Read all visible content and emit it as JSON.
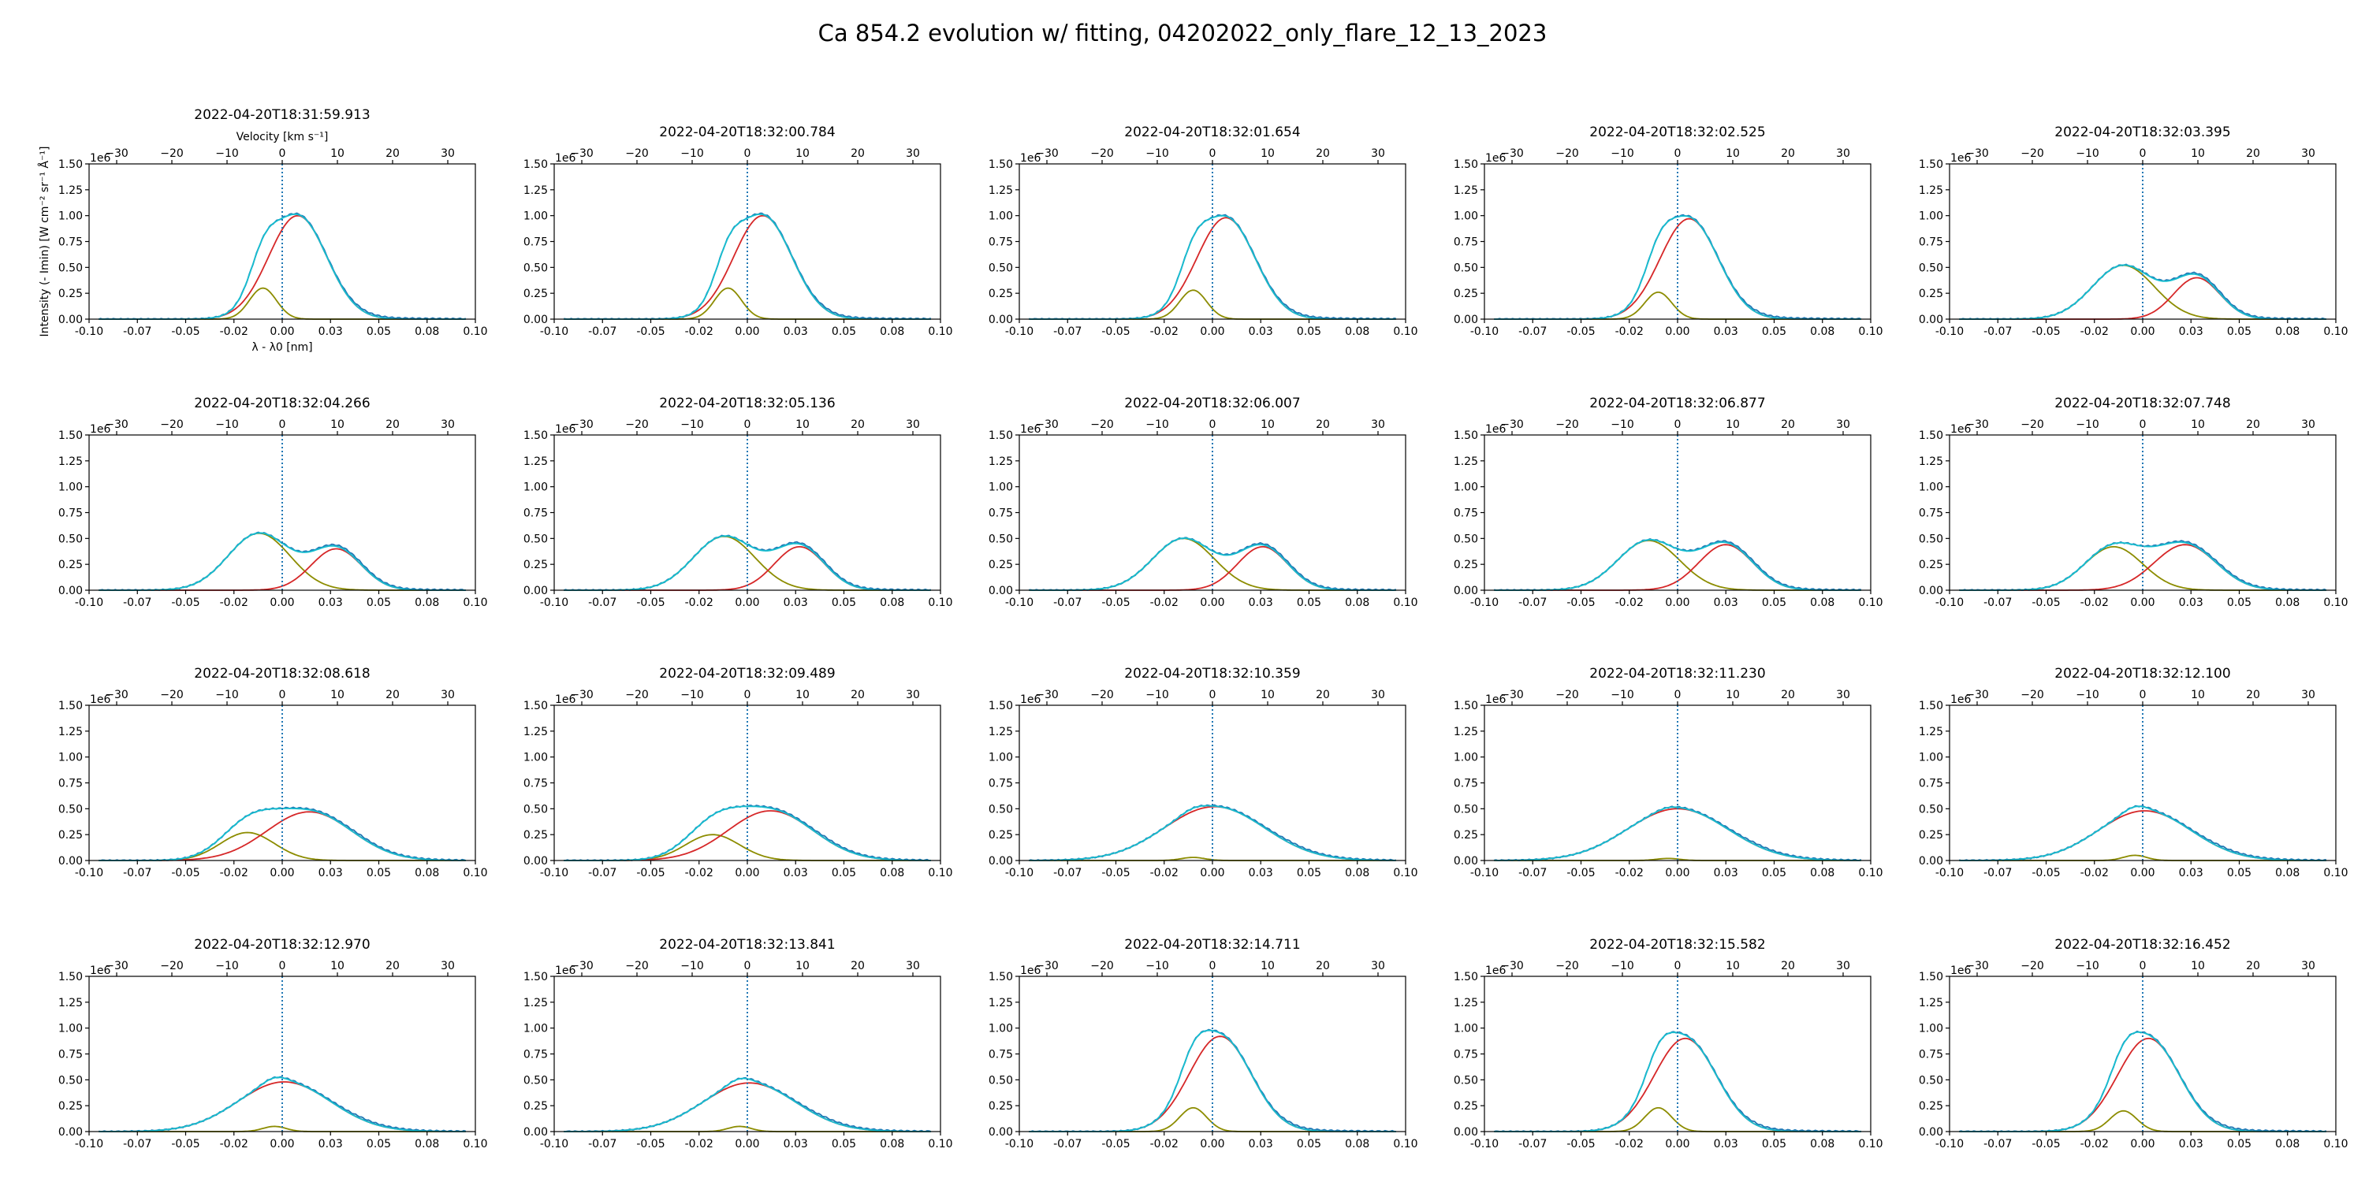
{
  "suptitle": "Ca 854.2 evolution w/ fitting, 04202022_only_flare_12_13_2023",
  "chart_data": {
    "type": "line",
    "title": "Ca 854.2 evolution w/ fitting, 04202022_only_flare_12_13_2023",
    "xlabel": "λ - λ0 [nm]",
    "ylabel": "Intensity (- Imin) [W cm⁻² sr⁻¹ Å⁻¹]",
    "top_xlabel": "Velocity [km s⁻¹]",
    "y_offset_label": "1e6",
    "xlim": [
      -0.1,
      0.1
    ],
    "ylim": [
      0,
      1.5
    ],
    "top_xlim": [
      -35,
      35
    ],
    "x_ticks": [
      -0.1,
      -0.075,
      -0.05,
      -0.025,
      0.0,
      0.025,
      0.05,
      0.075,
      0.1
    ],
    "x_tick_labels": [
      "-0.10",
      "-0.07",
      "-0.05",
      "-0.02",
      "0.00",
      "0.03",
      "0.05",
      "0.08",
      "0.10"
    ],
    "y_ticks": [
      0,
      0.25,
      0.5,
      0.75,
      1.0,
      1.25,
      1.5
    ],
    "y_tick_labels": [
      "0.00",
      "0.25",
      "0.50",
      "0.75",
      "1.00",
      "1.25",
      "1.50"
    ],
    "top_ticks": [
      -30,
      -20,
      -10,
      0,
      10,
      20,
      30
    ],
    "top_tick_labels": [
      "−30",
      "−20",
      "−10",
      "0",
      "10",
      "20",
      "30"
    ],
    "series_colors": {
      "observed": "#1f77b4",
      "fit_total": "#17becf",
      "component_red": "#d62728",
      "component_blue": "#8c8c00",
      "zero_line": "#1f77b4"
    },
    "grid": false,
    "panels": [
      {
        "title": "2022-04-20T18:31:59.913",
        "blue": {
          "amp": 0.3,
          "center": -0.01,
          "width": 0.007
        },
        "red": {
          "amp": 1.0,
          "center": 0.008,
          "width": 0.015
        }
      },
      {
        "title": "2022-04-20T18:32:00.784",
        "blue": {
          "amp": 0.3,
          "center": -0.01,
          "width": 0.007
        },
        "red": {
          "amp": 1.0,
          "center": 0.008,
          "width": 0.015
        }
      },
      {
        "title": "2022-04-20T18:32:01.654",
        "blue": {
          "amp": 0.28,
          "center": -0.01,
          "width": 0.007
        },
        "red": {
          "amp": 0.98,
          "center": 0.007,
          "width": 0.015
        }
      },
      {
        "title": "2022-04-20T18:32:02.525",
        "blue": {
          "amp": 0.26,
          "center": -0.01,
          "width": 0.007
        },
        "red": {
          "amp": 0.97,
          "center": 0.006,
          "width": 0.015
        }
      },
      {
        "title": "2022-04-20T18:32:03.395",
        "blue": {
          "amp": 0.52,
          "center": -0.01,
          "width": 0.016
        },
        "red": {
          "amp": 0.4,
          "center": 0.028,
          "width": 0.012
        }
      },
      {
        "title": "2022-04-20T18:32:04.266",
        "blue": {
          "amp": 0.55,
          "center": -0.012,
          "width": 0.016
        },
        "red": {
          "amp": 0.4,
          "center": 0.028,
          "width": 0.013
        }
      },
      {
        "title": "2022-04-20T18:32:05.136",
        "blue": {
          "amp": 0.52,
          "center": -0.012,
          "width": 0.016
        },
        "red": {
          "amp": 0.42,
          "center": 0.027,
          "width": 0.013
        }
      },
      {
        "title": "2022-04-20T18:32:06.007",
        "blue": {
          "amp": 0.5,
          "center": -0.015,
          "width": 0.016
        },
        "red": {
          "amp": 0.42,
          "center": 0.026,
          "width": 0.013
        }
      },
      {
        "title": "2022-04-20T18:32:06.877",
        "blue": {
          "amp": 0.48,
          "center": -0.015,
          "width": 0.016
        },
        "red": {
          "amp": 0.44,
          "center": 0.025,
          "width": 0.014
        }
      },
      {
        "title": "2022-04-20T18:32:07.748",
        "blue": {
          "amp": 0.42,
          "center": -0.015,
          "width": 0.015
        },
        "red": {
          "amp": 0.44,
          "center": 0.022,
          "width": 0.016
        }
      },
      {
        "title": "2022-04-20T18:32:08.618",
        "blue": {
          "amp": 0.27,
          "center": -0.018,
          "width": 0.014
        },
        "red": {
          "amp": 0.47,
          "center": 0.014,
          "width": 0.022
        }
      },
      {
        "title": "2022-04-20T18:32:09.489",
        "blue": {
          "amp": 0.25,
          "center": -0.018,
          "width": 0.014
        },
        "red": {
          "amp": 0.48,
          "center": 0.012,
          "width": 0.022
        }
      },
      {
        "title": "2022-04-20T18:32:10.359",
        "blue": {
          "amp": 0.03,
          "center": -0.01,
          "width": 0.006
        },
        "red": {
          "amp": 0.52,
          "center": 0.001,
          "width": 0.026
        }
      },
      {
        "title": "2022-04-20T18:32:11.230",
        "blue": {
          "amp": 0.02,
          "center": -0.005,
          "width": 0.006
        },
        "red": {
          "amp": 0.5,
          "center": 0.0,
          "width": 0.026
        }
      },
      {
        "title": "2022-04-20T18:32:12.100",
        "blue": {
          "amp": 0.05,
          "center": -0.004,
          "width": 0.006
        },
        "red": {
          "amp": 0.48,
          "center": 0.001,
          "width": 0.024
        }
      },
      {
        "title": "2022-04-20T18:32:12.970",
        "blue": {
          "amp": 0.05,
          "center": -0.004,
          "width": 0.006
        },
        "red": {
          "amp": 0.48,
          "center": 0.001,
          "width": 0.024
        }
      },
      {
        "title": "2022-04-20T18:32:13.841",
        "blue": {
          "amp": 0.05,
          "center": -0.004,
          "width": 0.006
        },
        "red": {
          "amp": 0.47,
          "center": 0.001,
          "width": 0.024
        }
      },
      {
        "title": "2022-04-20T18:32:14.711",
        "blue": {
          "amp": 0.23,
          "center": -0.01,
          "width": 0.007
        },
        "red": {
          "amp": 0.92,
          "center": 0.004,
          "width": 0.016
        }
      },
      {
        "title": "2022-04-20T18:32:15.582",
        "blue": {
          "amp": 0.23,
          "center": -0.01,
          "width": 0.007
        },
        "red": {
          "amp": 0.9,
          "center": 0.004,
          "width": 0.016
        }
      },
      {
        "title": "2022-04-20T18:32:16.452",
        "blue": {
          "amp": 0.2,
          "center": -0.01,
          "width": 0.007
        },
        "red": {
          "amp": 0.9,
          "center": 0.003,
          "width": 0.016
        }
      }
    ]
  }
}
